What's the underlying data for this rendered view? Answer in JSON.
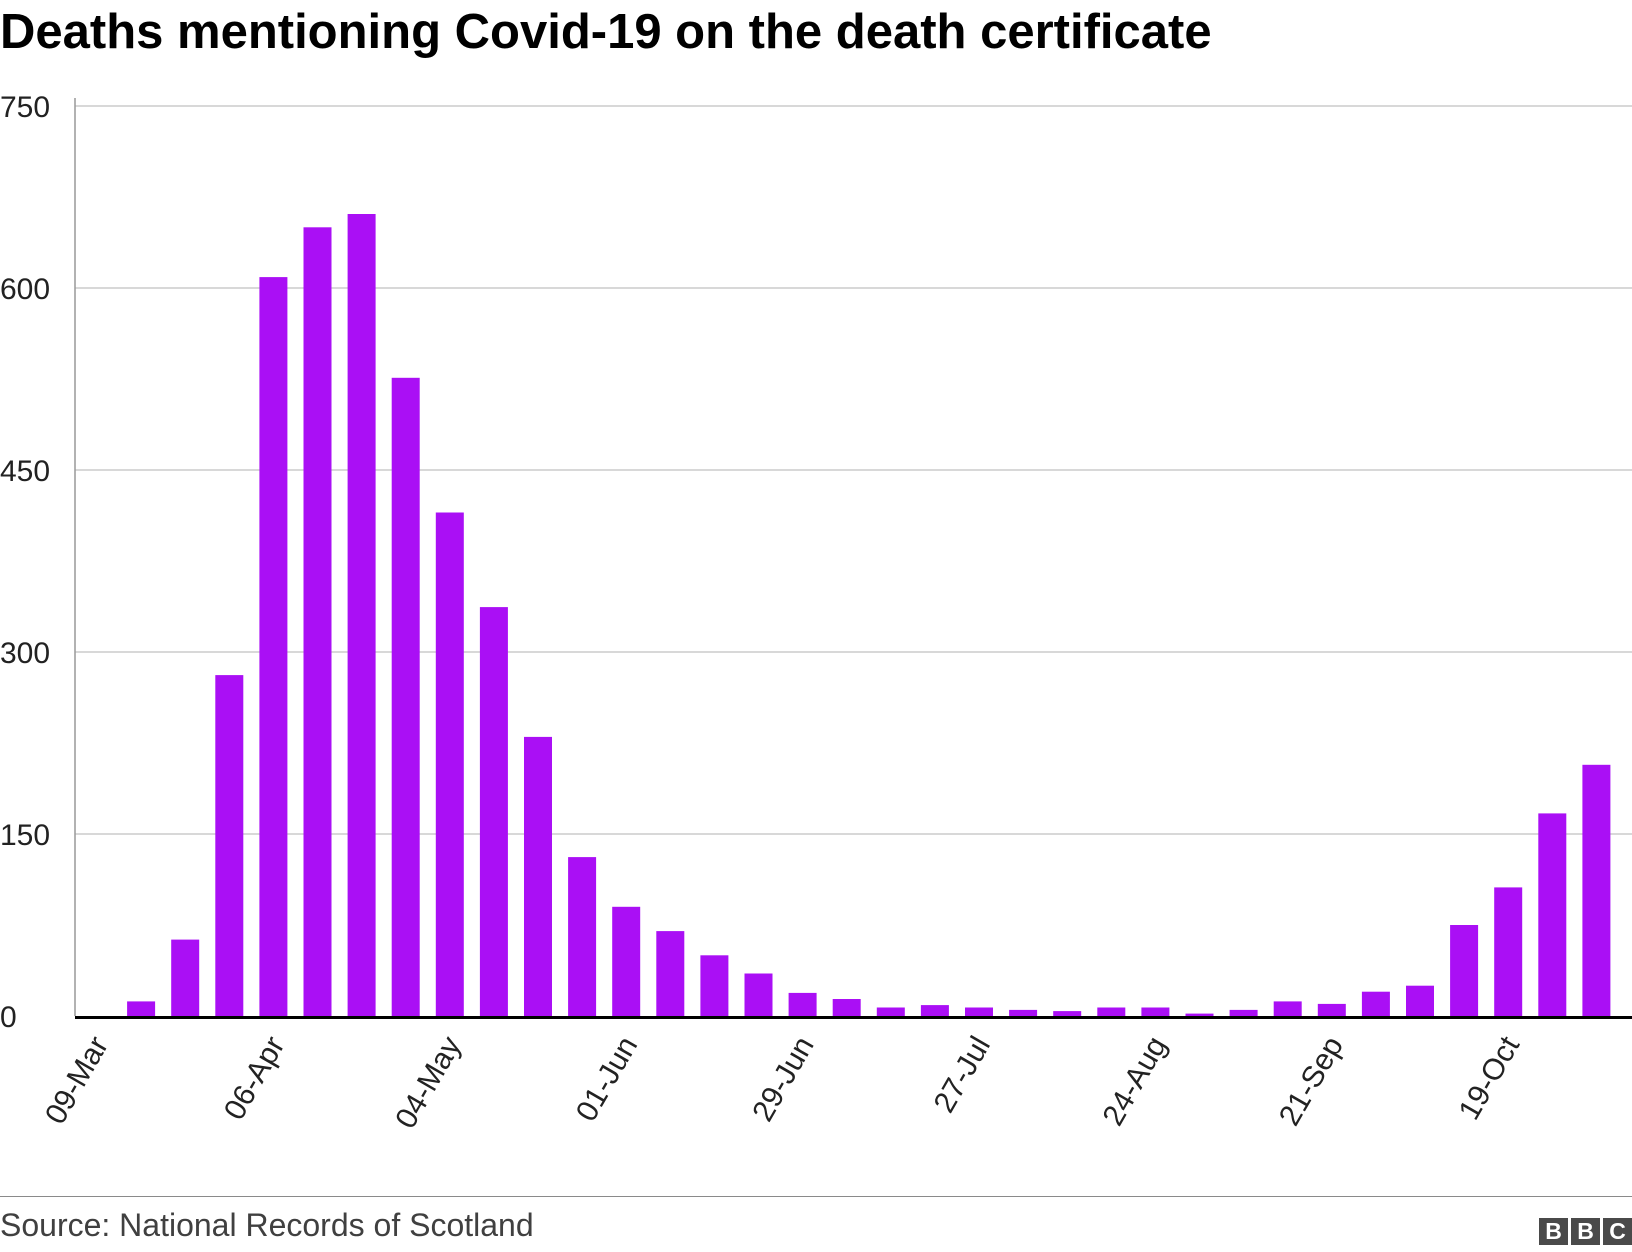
{
  "title": "Deaths mentioning Covid-19 on the death certificate",
  "source": "Source: National Records of Scotland",
  "logo_letters": [
    "B",
    "B",
    "C"
  ],
  "chart_data": {
    "type": "bar",
    "title": "Deaths mentioning Covid-19 on the death certificate",
    "xlabel": "",
    "ylabel": "",
    "bar_color": "#aa0ff5",
    "grid": true,
    "ylim": [
      0,
      750
    ],
    "yticks": [
      0,
      150,
      300,
      450,
      600,
      750
    ],
    "ytick_labels": [
      "0",
      "150",
      "300",
      "450",
      "600",
      "750"
    ],
    "xtick_labels": [
      "09-Mar",
      "06-Apr",
      "04-May",
      "01-Jun",
      "29-Jun",
      "27-Jul",
      "24-Aug",
      "21-Sep",
      "19-Oct"
    ],
    "categories": [
      "09-Mar",
      "16-Mar",
      "23-Mar",
      "30-Mar",
      "06-Apr",
      "13-Apr",
      "20-Apr",
      "27-Apr",
      "04-May",
      "11-May",
      "18-May",
      "25-May",
      "01-Jun",
      "08-Jun",
      "15-Jun",
      "22-Jun",
      "29-Jun",
      "06-Jul",
      "13-Jul",
      "20-Jul",
      "27-Jul",
      "03-Aug",
      "10-Aug",
      "17-Aug",
      "24-Aug",
      "31-Aug",
      "07-Sep",
      "14-Sep",
      "21-Sep",
      "28-Sep",
      "05-Oct",
      "12-Oct",
      "19-Oct",
      "26-Oct",
      "02-Nov",
      "09-Nov"
    ],
    "values": [
      0,
      12,
      63,
      281,
      609,
      650,
      661,
      526,
      415,
      337,
      230,
      131,
      90,
      70,
      50,
      35,
      19,
      14,
      7,
      9,
      7,
      5,
      4,
      7,
      7,
      2,
      5,
      12,
      10,
      20,
      25,
      75,
      106,
      167,
      207,
      0
    ]
  }
}
